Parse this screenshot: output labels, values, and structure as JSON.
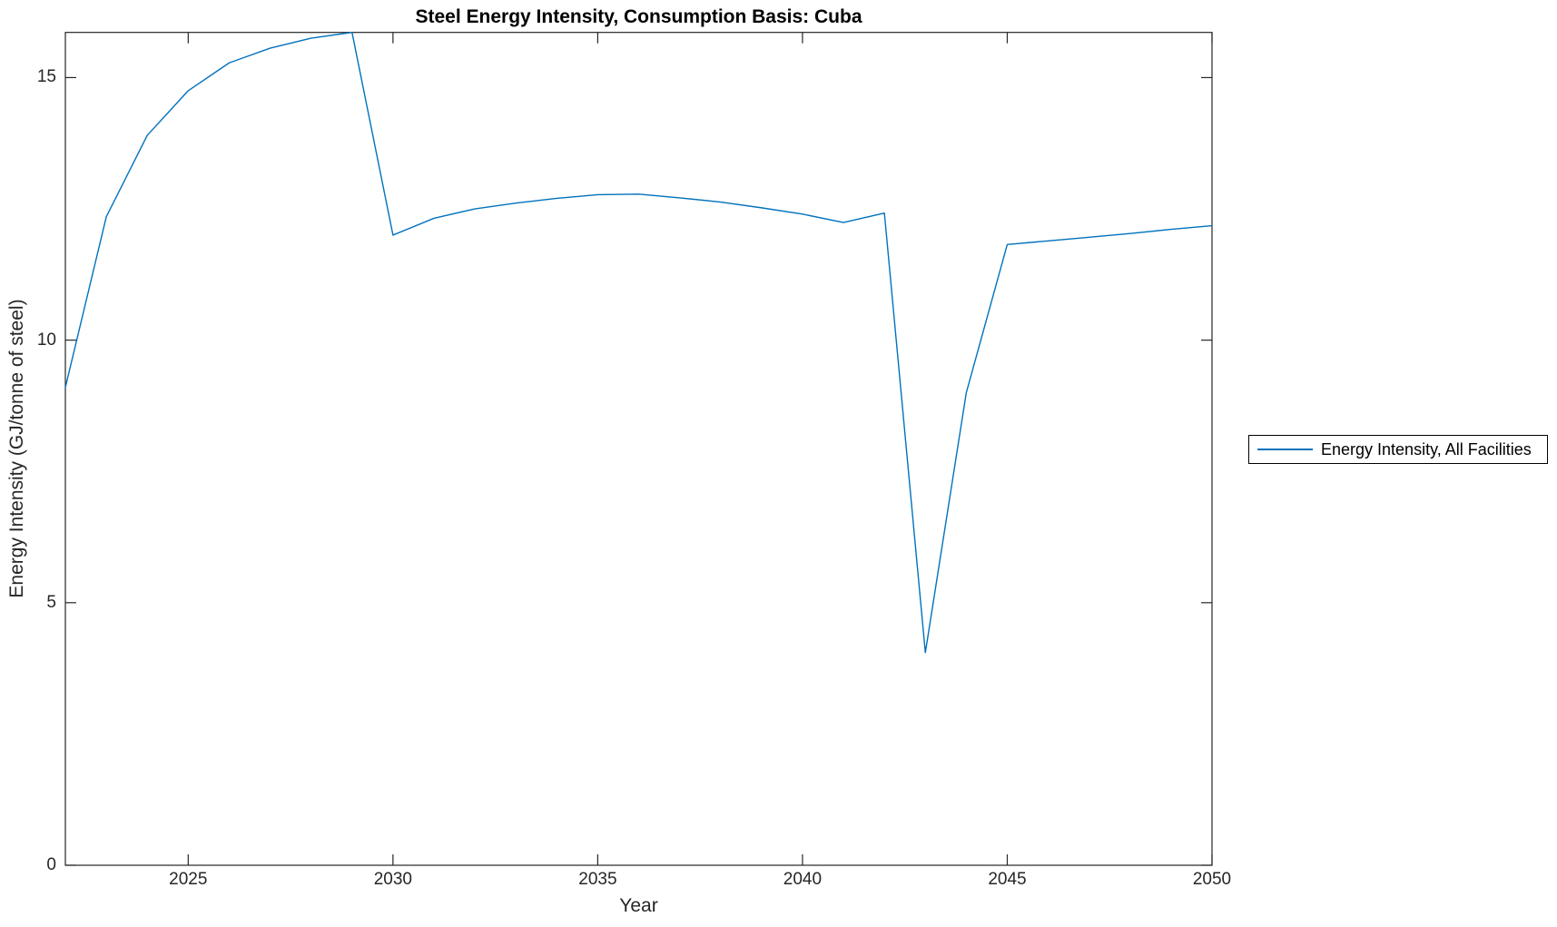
{
  "chart_data": {
    "type": "line",
    "title": "Steel Energy Intensity, Consumption Basis: Cuba",
    "xlabel": "Year",
    "ylabel": "Energy Intensity (GJ/tonne of steel)",
    "xlim": [
      2022,
      2050
    ],
    "ylim": [
      0,
      15.86
    ],
    "x_ticks": [
      2025,
      2030,
      2035,
      2040,
      2045,
      2050
    ],
    "y_ticks": [
      0,
      5,
      10,
      15
    ],
    "grid": false,
    "box": true,
    "tick_direction": "in",
    "legend_position": "right-outside-center",
    "series": [
      {
        "name": "Energy Intensity, All Facilities",
        "color": "#0072BD",
        "x": [
          2022,
          2023,
          2024,
          2025,
          2026,
          2027,
          2028,
          2029,
          2030,
          2031,
          2032,
          2033,
          2034,
          2035,
          2036,
          2037,
          2038,
          2039,
          2040,
          2041,
          2042,
          2043,
          2044,
          2045,
          2046,
          2047,
          2048,
          2049,
          2050
        ],
        "values": [
          9.1,
          12.35,
          13.9,
          14.75,
          15.28,
          15.56,
          15.75,
          15.86,
          12.0,
          12.32,
          12.5,
          12.61,
          12.7,
          12.77,
          12.78,
          12.71,
          12.63,
          12.52,
          12.4,
          12.24,
          12.42,
          4.05,
          9.0,
          11.82,
          11.89,
          11.96,
          12.03,
          12.11,
          12.18
        ]
      }
    ]
  },
  "colors": {
    "line": "#0072BD",
    "axis": "#262626",
    "tick_label": "#262626",
    "title_text": "#000000",
    "background": "#ffffff",
    "legend_border": "#000000"
  }
}
